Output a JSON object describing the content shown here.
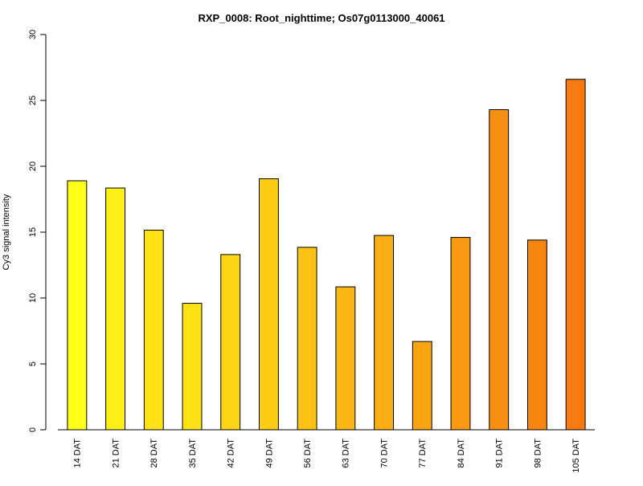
{
  "chart_data": {
    "type": "bar",
    "title": "RXP_0008: Root_nighttime; Os07g0113000_40061",
    "xlabel": "",
    "ylabel": "Cy3 signal intensity",
    "ylim": [
      0,
      30
    ],
    "yticks": [
      0,
      5,
      10,
      15,
      20,
      25,
      30
    ],
    "grid": false,
    "legend": "none",
    "categories": [
      "14 DAT",
      "21 DAT",
      "28 DAT",
      "35 DAT",
      "42 DAT",
      "49 DAT",
      "56 DAT",
      "63 DAT",
      "70 DAT",
      "77 DAT",
      "84 DAT",
      "91 DAT",
      "98 DAT",
      "105 DAT"
    ],
    "values": [
      18.9,
      18.35,
      15.15,
      9.6,
      13.3,
      19.05,
      13.85,
      10.85,
      14.75,
      6.7,
      14.6,
      24.3,
      14.4,
      26.6
    ],
    "colors": [
      "#ffff14",
      "#fff014",
      "#fee114",
      "#fed213",
      "#fec313",
      "#feb413",
      "#fda612",
      "#fd9712",
      "#fd8812",
      "#fc7911",
      "#fc6a11",
      "#fc5b11",
      "#fb4d10",
      "#fb3e10"
    ],
    "bar_colors": [
      "#FFFF17",
      "#FEF016",
      "#FEE216",
      "#FDE316",
      "#FDD516",
      "#FDCC15",
      "#FCC315",
      "#FBB814",
      "#FBAE14",
      "#FAA313",
      "#FA9A13",
      "#F98F12",
      "#F98511",
      "#F87A10"
    ]
  }
}
